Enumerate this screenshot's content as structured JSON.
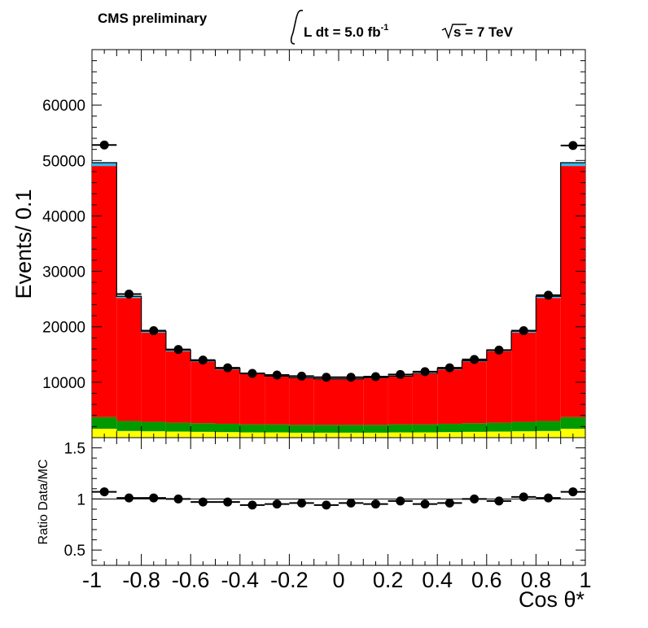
{
  "header": {
    "experiment": "CMS preliminary",
    "lumi_prefix": "L dt = 5.0 fb",
    "lumi_exponent": "-1",
    "energy": "s = 7 TeV"
  },
  "chart_data": [
    {
      "type": "bar",
      "subtype": "stacked-histogram-with-data-points",
      "xlabel": "Cos θ*",
      "ylabel": "Events/ 0.1",
      "xlim": [
        -1,
        1
      ],
      "ylim": [
        0,
        70000
      ],
      "bin_width": 0.1,
      "x": [
        -0.95,
        -0.85,
        -0.75,
        -0.65,
        -0.55,
        -0.45,
        -0.35,
        -0.25,
        -0.15,
        -0.05,
        0.05,
        0.15,
        0.25,
        0.35,
        0.45,
        0.55,
        0.65,
        0.75,
        0.85,
        0.95
      ],
      "yticks": [
        10000,
        20000,
        30000,
        40000,
        50000,
        60000
      ],
      "ytick_labels": [
        "10000",
        "20000",
        "30000",
        "40000",
        "50000",
        "60000"
      ],
      "colors": {
        "yellow": "#ffff00",
        "green": "#009900",
        "red": "#ff0000",
        "cyan": "#33bbee",
        "data": "#000000"
      },
      "series": [
        {
          "role": "background",
          "color": "#ffff00",
          "values": [
            1600,
            1200,
            1150,
            1100,
            1050,
            1000,
            950,
            950,
            900,
            900,
            900,
            900,
            950,
            950,
            1000,
            1050,
            1100,
            1150,
            1200,
            1600
          ]
        },
        {
          "role": "background",
          "color": "#009900",
          "values": [
            2100,
            1800,
            1700,
            1600,
            1550,
            1500,
            1450,
            1450,
            1400,
            1400,
            1400,
            1400,
            1450,
            1450,
            1500,
            1550,
            1600,
            1700,
            1800,
            2100
          ]
        },
        {
          "role": "signal",
          "color": "#ff0000",
          "values": [
            45300,
            22200,
            16100,
            12900,
            11100,
            9800,
            9100,
            8600,
            8400,
            8200,
            8200,
            8400,
            8600,
            9100,
            9800,
            11100,
            12900,
            16100,
            22200,
            45300
          ]
        },
        {
          "role": "background",
          "color": "#33bbee",
          "values": [
            600,
            300,
            250,
            200,
            150,
            150,
            100,
            100,
            100,
            100,
            100,
            100,
            100,
            100,
            150,
            150,
            200,
            250,
            300,
            600
          ]
        },
        {
          "role": "data",
          "color": "#000000",
          "values": [
            52800,
            25900,
            19300,
            15900,
            14000,
            12600,
            11600,
            11300,
            11100,
            10900,
            10900,
            11000,
            11400,
            11900,
            12600,
            14100,
            15800,
            19300,
            25700,
            52700
          ]
        }
      ]
    },
    {
      "type": "scatter",
      "ylabel": "Ratio Data/MC",
      "xlabel": "Cos θ*",
      "xlim": [
        -1,
        1
      ],
      "ylim": [
        0.35,
        1.6
      ],
      "reference_line": 1,
      "yticks": [
        0.5,
        1,
        1.5
      ],
      "ytick_labels": [
        "0.5",
        "1",
        "1.5"
      ],
      "xticks": [
        -1,
        -0.8,
        -0.6,
        -0.4,
        -0.2,
        0,
        0.2,
        0.4,
        0.6,
        0.8,
        1
      ],
      "xtick_labels": [
        "-1",
        "-0.8",
        "-0.6",
        "-0.4",
        "-0.2",
        "0",
        "0.2",
        "0.4",
        "0.6",
        "0.8",
        "1"
      ],
      "x": [
        -0.95,
        -0.85,
        -0.75,
        -0.65,
        -0.55,
        -0.45,
        -0.35,
        -0.25,
        -0.15,
        -0.05,
        0.05,
        0.15,
        0.25,
        0.35,
        0.45,
        0.55,
        0.65,
        0.75,
        0.85,
        0.95
      ],
      "values": [
        1.07,
        1.01,
        1.01,
        1.0,
        0.97,
        0.97,
        0.94,
        0.95,
        0.96,
        0.94,
        0.96,
        0.95,
        0.98,
        0.95,
        0.96,
        1.0,
        0.98,
        1.02,
        1.01,
        1.07
      ]
    }
  ]
}
